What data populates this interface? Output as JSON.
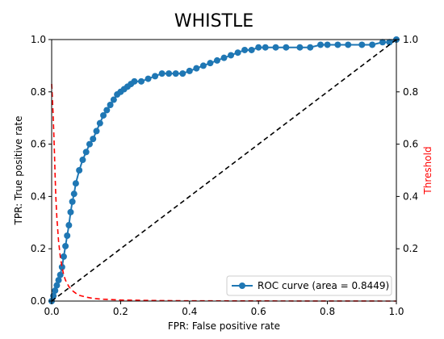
{
  "chart_data": {
    "type": "line",
    "title": "WHISTLE",
    "xlabel": "FPR: False positive rate",
    "ylabel": "TPR: True positive rate",
    "y2label": "Threshold",
    "xlim": [
      0,
      1
    ],
    "ylim": [
      0,
      1
    ],
    "y2lim": [
      0,
      1
    ],
    "xticks": [
      "0.0",
      "0.2",
      "0.4",
      "0.6",
      "0.8",
      "1.0"
    ],
    "yticks": [
      "0.0",
      "0.2",
      "0.4",
      "0.6",
      "0.8",
      "1.0"
    ],
    "y2ticks": [
      "0.2",
      "0.4",
      "0.6",
      "0.8",
      "1.0"
    ],
    "legend_position": "bottom-right",
    "series": [
      {
        "name": "ROC curve (area = 0.8449)",
        "color": "#1f77b4",
        "style": "solid-with-markers",
        "axis": "left",
        "x": [
          0,
          0.005,
          0.01,
          0.015,
          0.02,
          0.025,
          0.03,
          0.035,
          0.04,
          0.045,
          0.05,
          0.055,
          0.06,
          0.065,
          0.07,
          0.08,
          0.09,
          0.1,
          0.11,
          0.12,
          0.13,
          0.14,
          0.15,
          0.16,
          0.17,
          0.18,
          0.19,
          0.2,
          0.21,
          0.22,
          0.23,
          0.24,
          0.26,
          0.28,
          0.3,
          0.32,
          0.34,
          0.36,
          0.38,
          0.4,
          0.42,
          0.44,
          0.46,
          0.48,
          0.5,
          0.52,
          0.54,
          0.56,
          0.58,
          0.6,
          0.62,
          0.65,
          0.68,
          0.72,
          0.75,
          0.78,
          0.8,
          0.83,
          0.86,
          0.9,
          0.93,
          0.96,
          0.98,
          1.0
        ],
        "y": [
          0,
          0.02,
          0.04,
          0.06,
          0.08,
          0.1,
          0.13,
          0.17,
          0.21,
          0.25,
          0.29,
          0.34,
          0.38,
          0.41,
          0.45,
          0.5,
          0.54,
          0.57,
          0.6,
          0.62,
          0.65,
          0.68,
          0.71,
          0.73,
          0.75,
          0.77,
          0.79,
          0.8,
          0.81,
          0.82,
          0.83,
          0.84,
          0.84,
          0.85,
          0.86,
          0.87,
          0.87,
          0.87,
          0.87,
          0.88,
          0.89,
          0.9,
          0.91,
          0.92,
          0.93,
          0.94,
          0.95,
          0.96,
          0.96,
          0.97,
          0.97,
          0.97,
          0.97,
          0.97,
          0.97,
          0.98,
          0.98,
          0.98,
          0.98,
          0.98,
          0.98,
          0.99,
          0.99,
          1.0
        ]
      },
      {
        "name": "",
        "color": "#000000",
        "style": "dashed",
        "axis": "left",
        "x": [
          0,
          1
        ],
        "y": [
          0,
          1
        ]
      },
      {
        "name": "Threshold",
        "color": "#ff0000",
        "style": "dashed",
        "axis": "right",
        "x": [
          0,
          0.002,
          0.004,
          0.006,
          0.008,
          0.01,
          0.012,
          0.015,
          0.02,
          0.025,
          0.03,
          0.035,
          0.04,
          0.05,
          0.06,
          0.07,
          0.08,
          0.1,
          0.12,
          0.15,
          0.2,
          0.3,
          0.4,
          0.6,
          0.8,
          1.0
        ],
        "y": [
          0.83,
          0.78,
          0.72,
          0.65,
          0.57,
          0.48,
          0.4,
          0.32,
          0.23,
          0.17,
          0.13,
          0.1,
          0.08,
          0.055,
          0.04,
          0.03,
          0.022,
          0.015,
          0.01,
          0.007,
          0.004,
          0.002,
          0.001,
          0.0005,
          0.0002,
          0.0
        ]
      }
    ]
  }
}
